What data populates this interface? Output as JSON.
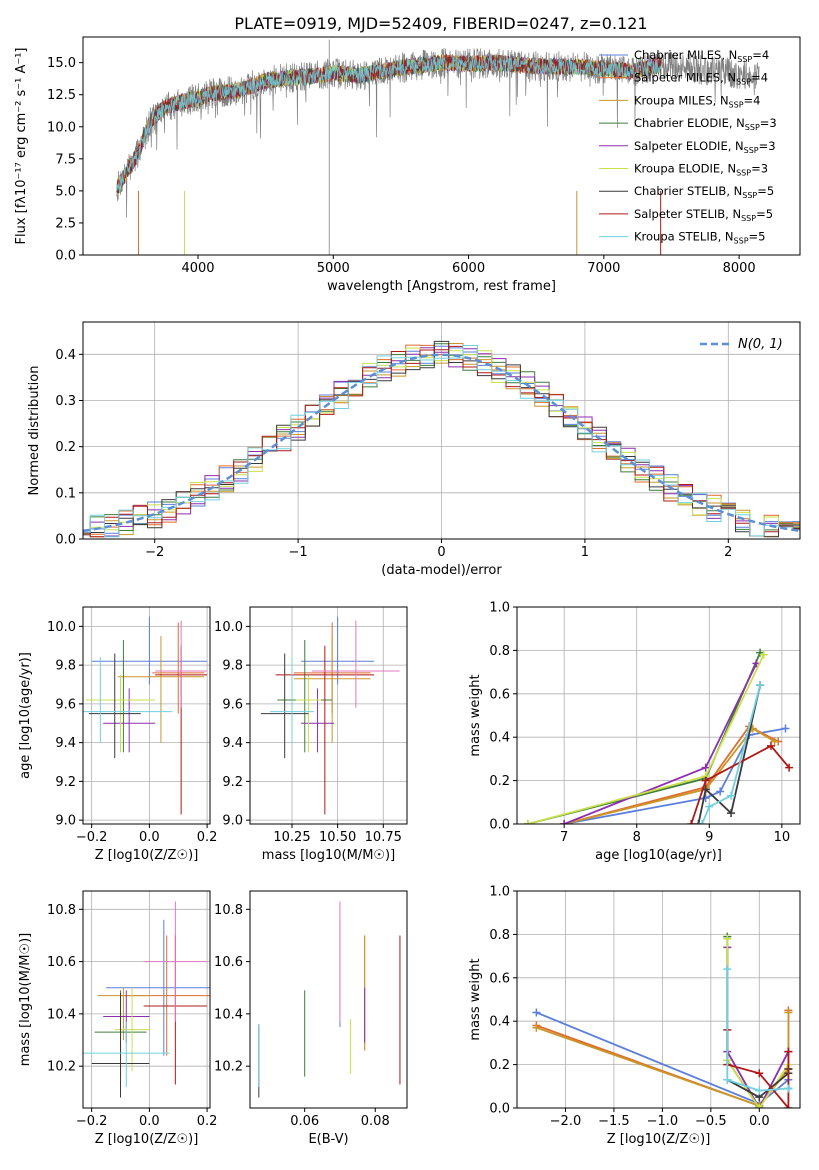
{
  "figure": {
    "title": "PLATE=0919, MJD=52409, FIBERID=0247, z=0.121",
    "models": [
      {
        "name": "Chabrier MILES",
        "nssp": "4",
        "color": "#5b7fdb"
      },
      {
        "name": "Salpeter MILES",
        "nssp": "4",
        "color": "#e06c2e"
      },
      {
        "name": "Kroupa MILES",
        "nssp": "4",
        "color": "#c9962a"
      },
      {
        "name": "Chabrier ELODIE",
        "nssp": "3",
        "color": "#3c7d3c"
      },
      {
        "name": "Salpeter ELODIE",
        "nssp": "3",
        "color": "#8e2fb0"
      },
      {
        "name": "Kroupa ELODIE",
        "nssp": "3",
        "color": "#c8e04a"
      },
      {
        "name": "Chabrier STELIB",
        "nssp": "5",
        "color": "#3a3a3a"
      },
      {
        "name": "Salpeter STELIB",
        "nssp": "5",
        "color": "#b01818"
      },
      {
        "name": "Kroupa STELIB",
        "nssp": "5",
        "color": "#6fd0e0"
      }
    ],
    "nssp_label": "N",
    "nssp_sub": "SSP"
  },
  "chart_data": [
    {
      "id": "spectrum",
      "type": "line",
      "xlabel": "wavelength [Angstrom, rest frame]",
      "ylabel": "Flux [fλ10⁻¹⁷ erg cm⁻² s⁻¹ A⁻¹]",
      "xlim": [
        3150,
        8450
      ],
      "ylim": [
        0,
        17
      ],
      "xticks": [
        4000,
        5000,
        6000,
        7000,
        8000
      ],
      "yticks": [
        0.0,
        2.5,
        5.0,
        7.5,
        10.0,
        12.5,
        15.0
      ],
      "continuum": {
        "x": [
          3400,
          3550,
          3650,
          3750,
          3900,
          4000,
          4100,
          4300,
          4500,
          4800,
          5000,
          5200,
          5500,
          5800,
          6000,
          6200,
          6500,
          6800,
          7000,
          7200,
          7420
        ],
        "y": [
          5.2,
          7.8,
          10.5,
          11.5,
          12.0,
          12.2,
          12.6,
          12.8,
          13.6,
          13.9,
          14.2,
          14.0,
          14.6,
          15.0,
          14.9,
          15.0,
          14.7,
          14.7,
          14.5,
          14.3,
          14.8
        ]
      },
      "observed_extent": [
        3400,
        8150
      ],
      "legend_position": "top-right"
    },
    {
      "id": "residuals",
      "type": "histogram",
      "xlabel": "(data-model)/error",
      "ylabel": "Normed distribution",
      "xlim": [
        -2.5,
        2.5
      ],
      "ylim": [
        0,
        0.47
      ],
      "xticks": [
        -2,
        -1,
        0,
        1,
        2
      ],
      "yticks": [
        0.0,
        0.1,
        0.2,
        0.3,
        0.4
      ],
      "bin_width": 0.1,
      "reference_label": "N(0, 1)",
      "reference": {
        "mean": 0,
        "sigma": 1
      },
      "legend_position": "top-right",
      "grid": true
    },
    {
      "id": "age-vs-Z",
      "type": "scatter",
      "xlabel": "Z [log10(Z/Z☉)]",
      "ylabel": "age  [log10(age/yr)]",
      "xlim": [
        -0.23,
        0.21
      ],
      "ylim": [
        8.98,
        10.1
      ],
      "xticks": [
        -0.2,
        0.0,
        0.2
      ],
      "yticks": [
        9.0,
        9.2,
        9.4,
        9.6,
        9.8,
        10.0
      ],
      "points": [
        {
          "x": 0.0,
          "xerr": 0.2,
          "y": 9.82,
          "ylo": 9.7,
          "yhi": 10.05
        },
        {
          "x": 0.1,
          "xerr": 0.09,
          "y": 9.76,
          "ylo": 9.55,
          "yhi": 10.02
        },
        {
          "x": 0.04,
          "xerr": 0.15,
          "y": 9.74,
          "ylo": 9.4,
          "yhi": 9.95
        },
        {
          "x": -0.09,
          "xerr": 0.09,
          "y": 9.62,
          "ylo": 9.35,
          "yhi": 9.93
        },
        {
          "x": -0.07,
          "xerr": 0.09,
          "y": 9.5,
          "ylo": 9.35,
          "yhi": 9.68
        },
        {
          "x": -0.1,
          "xerr": 0.12,
          "y": 9.62,
          "ylo": 9.35,
          "yhi": 9.75
        },
        {
          "x": -0.12,
          "xerr": 0.09,
          "y": 9.55,
          "ylo": 9.32,
          "yhi": 9.86
        },
        {
          "x": 0.11,
          "xerr": 0.09,
          "y": 9.75,
          "ylo": 9.03,
          "yhi": 9.9
        },
        {
          "x": -0.17,
          "xerr": 0.25,
          "y": 9.56,
          "ylo": 9.4,
          "yhi": 9.84
        }
      ],
      "extra": [
        {
          "color": "#e377c2",
          "x": 0.11,
          "xerr": 0.09,
          "y": 9.77,
          "ylo": 9.58,
          "yhi": 10.03
        }
      ],
      "grid": true
    },
    {
      "id": "age-vs-mass",
      "type": "scatter",
      "xlabel": "mass [log10(M/M☉)]",
      "ylabel": "",
      "xlim": [
        10.02,
        10.88
      ],
      "ylim": [
        8.98,
        10.1
      ],
      "xticks": [
        10.25,
        10.5,
        10.75
      ],
      "xtick_labels": [
        "10.25",
        "10.50",
        "10.75"
      ],
      "yticks": [
        9.0,
        9.2,
        9.4,
        9.6,
        9.8,
        10.0
      ],
      "points": [
        {
          "x": 10.5,
          "xerr": 0.2,
          "y": 9.82,
          "ylo": 9.7,
          "yhi": 10.05
        },
        {
          "x": 10.47,
          "xerr": 0.21,
          "y": 9.76,
          "ylo": 9.55,
          "yhi": 10.02
        },
        {
          "x": 10.47,
          "xerr": 0.21,
          "y": 9.73,
          "ylo": 9.4,
          "yhi": 9.95
        },
        {
          "x": 10.32,
          "xerr": 0.15,
          "y": 9.62,
          "ylo": 9.35,
          "yhi": 9.93
        },
        {
          "x": 10.39,
          "xerr": 0.09,
          "y": 9.5,
          "ylo": 9.35,
          "yhi": 9.68
        },
        {
          "x": 10.34,
          "xerr": 0.07,
          "y": 9.62,
          "ylo": 9.35,
          "yhi": 9.75
        },
        {
          "x": 10.21,
          "xerr": 0.13,
          "y": 9.55,
          "ylo": 9.32,
          "yhi": 9.86
        },
        {
          "x": 10.43,
          "xerr": 0.27,
          "y": 9.75,
          "ylo": 9.03,
          "yhi": 9.9
        },
        {
          "x": 10.25,
          "xerr": 0.12,
          "y": 9.56,
          "ylo": 9.4,
          "yhi": 9.84
        }
      ],
      "extra": [
        {
          "color": "#e377c2",
          "x": 10.6,
          "xerr": 0.24,
          "y": 9.77,
          "ylo": 9.58,
          "yhi": 10.03
        }
      ],
      "grid": true
    },
    {
      "id": "weight-vs-age",
      "type": "line",
      "xlabel": "age  [log10(age/yr)]",
      "ylabel": "mass weight",
      "xlim": [
        6.35,
        10.25
      ],
      "ylim": [
        0,
        1
      ],
      "xticks": [
        7,
        8,
        9,
        10
      ],
      "yticks": [
        0.0,
        0.2,
        0.4,
        0.6,
        0.8,
        1.0
      ],
      "series": [
        {
          "x": [
            7.0,
            8.95,
            9.15,
            9.55,
            10.05
          ],
          "y": [
            0.0,
            0.12,
            0.15,
            0.41,
            0.44
          ]
        },
        {
          "x": [
            7.0,
            8.95,
            9.55,
            9.95
          ],
          "y": [
            0.0,
            0.17,
            0.45,
            0.38
          ]
        },
        {
          "x": [
            7.0,
            8.95,
            9.6,
            9.9
          ],
          "y": [
            0.0,
            0.16,
            0.44,
            0.38
          ]
        },
        {
          "x": [
            6.5,
            8.95,
            9.7
          ],
          "y": [
            0.0,
            0.21,
            0.79
          ]
        },
        {
          "x": [
            7.0,
            8.95,
            9.65
          ],
          "y": [
            0.0,
            0.26,
            0.74
          ]
        },
        {
          "x": [
            6.5,
            8.95,
            9.75
          ],
          "y": [
            0.0,
            0.22,
            0.78
          ]
        },
        {
          "x": [
            8.85,
            8.95,
            9.3,
            9.7
          ],
          "y": [
            0.0,
            0.16,
            0.05,
            0.64
          ]
        },
        {
          "x": [
            8.75,
            8.95,
            9.85,
            10.1
          ],
          "y": [
            0.0,
            0.2,
            0.36,
            0.26
          ]
        },
        {
          "x": [
            8.9,
            9.0,
            9.3,
            9.7
          ],
          "y": [
            0.0,
            0.08,
            0.13,
            0.64
          ]
        }
      ],
      "grid": true
    },
    {
      "id": "mass-vs-Z",
      "type": "scatter",
      "xlabel": "Z [log10(Z/Z☉)]",
      "ylabel": "mass [log10(M/M☉)]",
      "xlim": [
        -0.23,
        0.21
      ],
      "ylim": [
        10.04,
        10.87
      ],
      "xticks": [
        -0.2,
        0.0,
        0.2
      ],
      "yticks": [
        10.2,
        10.4,
        10.6,
        10.8
      ],
      "points": [
        {
          "x": 0.05,
          "xerr": 0.2,
          "y": 10.5,
          "ylo": 10.24,
          "yhi": 10.76
        },
        {
          "x": 0.06,
          "xerr": 0.16,
          "y": 10.47,
          "ylo": 10.24,
          "yhi": 10.7
        },
        {
          "x": -0.09,
          "xerr": 0.09,
          "y": 10.47,
          "ylo": 10.3,
          "yhi": 10.5
        },
        {
          "x": -0.1,
          "xerr": 0.09,
          "y": 10.33,
          "ylo": 10.16,
          "yhi": 10.49
        },
        {
          "x": -0.08,
          "xerr": 0.08,
          "y": 10.39,
          "ylo": 10.29,
          "yhi": 10.49
        },
        {
          "x": -0.06,
          "xerr": 0.06,
          "y": 10.34,
          "ylo": 10.18,
          "yhi": 10.5
        },
        {
          "x": -0.1,
          "xerr": 0.1,
          "y": 10.21,
          "ylo": 10.08,
          "yhi": 10.48
        },
        {
          "x": 0.09,
          "xerr": 0.11,
          "y": 10.43,
          "ylo": 10.13,
          "yhi": 10.7
        },
        {
          "x": -0.08,
          "xerr": 0.15,
          "y": 10.25,
          "ylo": 10.12,
          "yhi": 10.37
        }
      ],
      "extra": [
        {
          "color": "#e377c2",
          "x": 0.09,
          "xerr": 0.11,
          "y": 10.6,
          "ylo": 10.37,
          "yhi": 10.83
        }
      ],
      "grid": true
    },
    {
      "id": "mass-vs-EBV",
      "type": "scatter",
      "xlabel": "E(B-V)",
      "ylabel": "",
      "xlim": [
        0.0445,
        0.089
      ],
      "ylim": [
        10.04,
        10.87
      ],
      "xticks": [
        0.06,
        0.08
      ],
      "yticks": [
        10.2,
        10.4,
        10.6,
        10.8
      ],
      "points": [
        {
          "x": 0.07,
          "xerr": 0.0,
          "y": 10.5,
          "ylo": 10.35,
          "yhi": 10.76
        },
        {
          "x": 0.077,
          "xerr": 0.0,
          "y": 10.47,
          "ylo": 10.26,
          "yhi": 10.7
        },
        {
          "x": 0.077,
          "xerr": 0.0,
          "y": 10.47,
          "ylo": 10.26,
          "yhi": 10.7
        },
        {
          "x": 0.06,
          "xerr": 0.0,
          "y": 10.33,
          "ylo": 10.16,
          "yhi": 10.49
        },
        {
          "x": 0.077,
          "xerr": 0.0,
          "y": 10.4,
          "ylo": 10.29,
          "yhi": 10.5
        },
        {
          "x": 0.073,
          "xerr": 0.0,
          "y": 10.26,
          "ylo": 10.17,
          "yhi": 10.38
        },
        {
          "x": 0.047,
          "xerr": 0.0,
          "y": 10.21,
          "ylo": 10.08,
          "yhi": 10.36
        },
        {
          "x": 0.087,
          "xerr": 0.0,
          "y": 10.4,
          "ylo": 10.13,
          "yhi": 10.7
        },
        {
          "x": 0.047,
          "xerr": 0.0,
          "y": 10.25,
          "ylo": 10.12,
          "yhi": 10.36
        }
      ],
      "extra": [
        {
          "color": "#e377c2",
          "x": 0.07,
          "xerr": 0.0,
          "y": 10.6,
          "ylo": 10.37,
          "yhi": 10.83
        }
      ],
      "grid": false
    },
    {
      "id": "weight-vs-Z",
      "type": "line",
      "xlabel": "Z [log10(Z/Z☉)]",
      "ylabel": "mass weight",
      "xlim": [
        -2.5,
        0.42
      ],
      "ylim": [
        0,
        1
      ],
      "xticks": [
        -2.0,
        -1.5,
        -1.0,
        -0.5,
        0.0
      ],
      "yticks": [
        0.0,
        0.2,
        0.4,
        0.6,
        0.8,
        1.0
      ],
      "series": [
        {
          "x": [
            -2.3,
            0.0,
            0.3,
            0.3
          ],
          "y": [
            0.44,
            0.02,
            0.13,
            0.09
          ]
        },
        {
          "x": [
            -2.3,
            0.0,
            0.3,
            0.3
          ],
          "y": [
            0.38,
            0.01,
            0.18,
            0.45
          ]
        },
        {
          "x": [
            -2.3,
            0.0,
            0.3,
            0.3
          ],
          "y": [
            0.37,
            0.01,
            0.18,
            0.44
          ]
        },
        {
          "x": [
            -0.33,
            -0.33,
            0.0,
            0.0
          ],
          "y": [
            0.79,
            0.22,
            0.0,
            0.0
          ]
        },
        {
          "x": [
            -0.33,
            -0.33,
            0.0,
            0.3
          ],
          "y": [
            0.74,
            0.26,
            0.0,
            0.26
          ]
        },
        {
          "x": [
            -0.33,
            -0.33,
            0.0,
            0.3
          ],
          "y": [
            0.78,
            0.22,
            0.0,
            0.2
          ]
        },
        {
          "x": [
            -0.33,
            0.0,
            0.3,
            0.3
          ],
          "y": [
            0.13,
            0.05,
            0.16,
            0.18
          ]
        },
        {
          "x": [
            -0.33,
            -0.33,
            0.0,
            0.3,
            0.3
          ],
          "y": [
            0.36,
            0.2,
            0.16,
            0.0,
            0.26
          ]
        },
        {
          "x": [
            -0.33,
            -0.33,
            0.0,
            0.3,
            0.3
          ],
          "y": [
            0.64,
            0.13,
            0.08,
            0.09,
            0.09
          ]
        }
      ],
      "grid": true
    }
  ]
}
